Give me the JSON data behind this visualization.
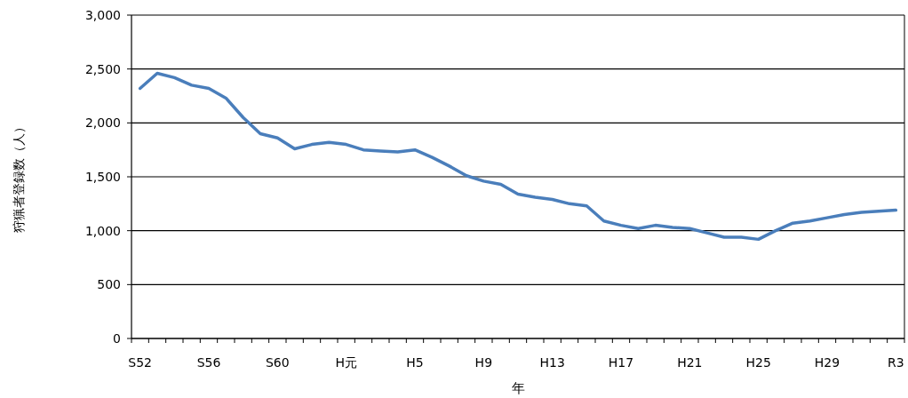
{
  "chart_data": {
    "type": "line",
    "xlabel": "年",
    "ylabel": "狩猟者登録数（人）",
    "categories": [
      "S52",
      null,
      null,
      null,
      "S56",
      null,
      null,
      null,
      "S60",
      null,
      null,
      null,
      "H元",
      null,
      null,
      null,
      "H5",
      null,
      null,
      null,
      "H9",
      null,
      null,
      null,
      "H13",
      null,
      null,
      null,
      "H17",
      null,
      null,
      null,
      "H21",
      null,
      null,
      null,
      "H25",
      null,
      null,
      null,
      "H29",
      null,
      null,
      null,
      "R3"
    ],
    "series": [
      {
        "color": "#4a7ebb",
        "values": [
          2320,
          2460,
          2420,
          2350,
          2320,
          2230,
          2050,
          1900,
          1860,
          1760,
          1800,
          1820,
          1800,
          1750,
          1740,
          1730,
          1750,
          1680,
          1600,
          1510,
          1460,
          1430,
          1340,
          1310,
          1290,
          1250,
          1230,
          1090,
          1050,
          1020,
          1050,
          1030,
          1020,
          980,
          940,
          940,
          920,
          1000,
          1070,
          1090,
          1120,
          1150,
          1170,
          1180,
          1190
        ]
      }
    ],
    "ylim": [
      0,
      3000
    ],
    "yticks": [
      0,
      500,
      {
        "value": 1000,
        "label": "1,000"
      },
      {
        "value": 1500,
        "label": "1,500"
      },
      {
        "value": 2000,
        "label": "2,000"
      },
      {
        "value": 2500,
        "label": "2,500"
      },
      {
        "value": 3000,
        "label": "3,000"
      }
    ],
    "grid": "y",
    "marker": "none",
    "line_style": "solid"
  }
}
